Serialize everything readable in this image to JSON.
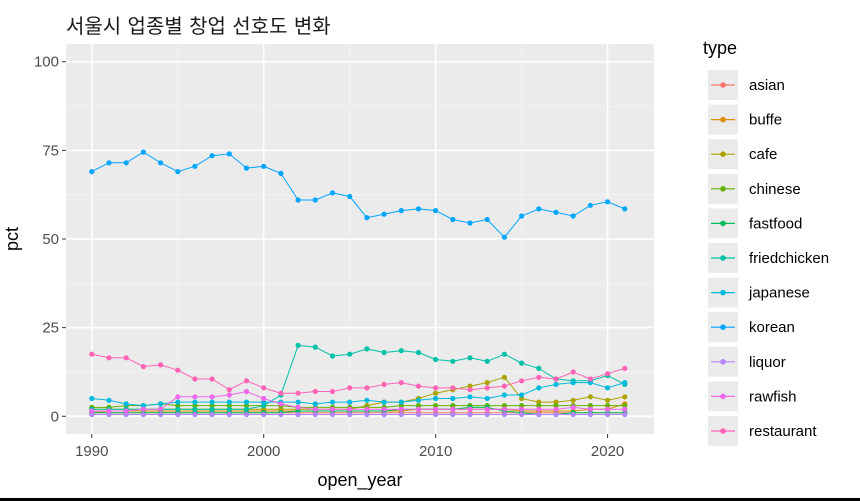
{
  "chart_data": {
    "type": "line",
    "title": "서울시 업종별 창업 선호도 변화",
    "xlabel": "open_year",
    "ylabel": "pct",
    "xlim": [
      1988.5,
      2022.7
    ],
    "ylim": [
      -5,
      105
    ],
    "x_ticks": [
      1990,
      2000,
      2010,
      2020
    ],
    "y_ticks": [
      0,
      25,
      50,
      75,
      100
    ],
    "x_tick_labels": [
      "1990",
      "2000",
      "2010",
      "2020"
    ],
    "y_tick_labels": [
      "0",
      "25",
      "50",
      "75",
      "100"
    ],
    "grid": true,
    "legend_title": "type",
    "legend_position": "right",
    "x": [
      1990,
      1991,
      1992,
      1993,
      1994,
      1995,
      1996,
      1997,
      1998,
      1999,
      2000,
      2001,
      2002,
      2003,
      2004,
      2005,
      2006,
      2007,
      2008,
      2009,
      2010,
      2011,
      2012,
      2013,
      2014,
      2015,
      2016,
      2017,
      2018,
      2019,
      2020,
      2021
    ],
    "series": [
      {
        "name": "asian",
        "color": "#F8766D",
        "values": [
          1,
          1,
          1,
          1,
          1,
          1,
          1,
          1,
          1,
          1,
          1,
          1,
          1,
          1,
          1,
          1,
          1,
          1,
          1,
          1,
          1,
          1,
          1,
          1,
          1,
          1,
          1,
          1,
          1,
          1,
          1,
          1
        ]
      },
      {
        "name": "buffe",
        "color": "#DB8E00",
        "values": [
          1,
          1.5,
          1.5,
          1.5,
          1.5,
          1.5,
          1.5,
          1.5,
          1.5,
          1.5,
          1.5,
          1.5,
          1.5,
          1.5,
          1.5,
          1.5,
          1.5,
          1.5,
          1.5,
          2,
          2,
          2,
          2,
          2,
          2,
          1.5,
          1.5,
          1.5,
          1.5,
          2,
          2,
          3.5
        ]
      },
      {
        "name": "cafe",
        "color": "#AEA200",
        "values": [
          2,
          2,
          2,
          2,
          2,
          2,
          2,
          2,
          2,
          2,
          2,
          2,
          2,
          2,
          2,
          2,
          3,
          4,
          4,
          5,
          6.5,
          7.5,
          8.5,
          9.5,
          11,
          5,
          4,
          4,
          4.5,
          5.5,
          4.5,
          5.5
        ]
      },
      {
        "name": "chinese",
        "color": "#64B200",
        "values": [
          2.5,
          2.5,
          3,
          3,
          3.5,
          3,
          3,
          3,
          3,
          3,
          3,
          3,
          2.5,
          2.5,
          2.5,
          2.5,
          2.5,
          2.5,
          3,
          3,
          3,
          3,
          3,
          3,
          3,
          3,
          3,
          3,
          3,
          3,
          3,
          3
        ]
      },
      {
        "name": "fastfood",
        "color": "#00BD5C",
        "values": [
          1,
          1,
          1,
          1,
          1,
          1,
          1,
          1,
          1,
          1,
          1,
          1,
          1.5,
          1.5,
          1.5,
          1.5,
          1.5,
          1.5,
          2,
          2,
          2,
          2,
          2.5,
          2.5,
          1.5,
          1,
          0.5,
          0.5,
          1,
          1,
          1,
          1
        ]
      },
      {
        "name": "friedchicken",
        "color": "#00C1A7",
        "values": [
          2,
          2,
          2,
          2,
          2,
          2,
          2,
          2,
          2,
          2,
          3,
          6,
          20,
          19.5,
          17,
          17.5,
          19,
          18,
          18.5,
          18,
          16,
          15.5,
          16.5,
          15.5,
          17.5,
          15,
          13.5,
          10.5,
          10,
          10,
          11.5,
          9
        ]
      },
      {
        "name": "japanese",
        "color": "#00BADE",
        "values": [
          5,
          4.5,
          3.5,
          3,
          3.5,
          4,
          4,
          4,
          4,
          4,
          4,
          4,
          4,
          3.5,
          4,
          4,
          4.5,
          4,
          4,
          4.5,
          5,
          5,
          5.5,
          5,
          6,
          6,
          8,
          9,
          9.5,
          9.5,
          8,
          9.5
        ]
      },
      {
        "name": "korean",
        "color": "#00A6FF",
        "values": [
          69,
          71.5,
          71.5,
          74.5,
          71.5,
          69,
          70.5,
          73.5,
          74,
          70,
          70.5,
          68.5,
          61,
          61,
          63,
          62,
          56,
          57,
          58,
          58.5,
          58,
          55.5,
          54.5,
          55.5,
          50.5,
          56.5,
          58.5,
          57.5,
          56.5,
          59.5,
          60.5,
          58.5
        ]
      },
      {
        "name": "liquor",
        "color": "#B385FF",
        "values": [
          0.5,
          0.5,
          0.5,
          0.5,
          0.5,
          0.5,
          0.5,
          0.5,
          0.5,
          0.5,
          0.5,
          0.5,
          0.5,
          0.5,
          0.5,
          0.5,
          0.5,
          0.5,
          0.5,
          0.5,
          0.5,
          0.5,
          0.5,
          0.5,
          0.5,
          0.5,
          0.5,
          0.5,
          0.5,
          0.5,
          0.5,
          0.5
        ]
      },
      {
        "name": "rawfish",
        "color": "#EF67EB",
        "values": [
          1.5,
          1.5,
          1.5,
          2,
          2,
          5.5,
          5.5,
          5.5,
          6,
          7,
          5,
          3.5,
          2.5,
          2,
          2,
          2,
          2,
          2,
          2,
          2,
          2,
          2,
          2,
          2,
          2,
          2,
          2,
          2,
          2.5,
          2,
          2,
          2
        ]
      },
      {
        "name": "restaurant",
        "color": "#FF63B6",
        "values": [
          17.5,
          16.5,
          16.5,
          14,
          14.5,
          13,
          10.5,
          10.5,
          7.5,
          10,
          8,
          6.5,
          6.5,
          7,
          7,
          8,
          8,
          9,
          9.5,
          8.5,
          8,
          8,
          7.5,
          8,
          8.5,
          10,
          11,
          10.5,
          12.5,
          10.5,
          12,
          13.5
        ]
      }
    ]
  }
}
